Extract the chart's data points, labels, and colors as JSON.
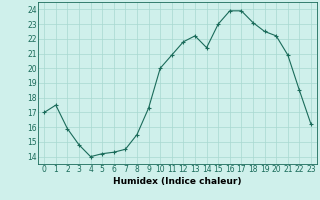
{
  "x": [
    0,
    1,
    2,
    3,
    4,
    5,
    6,
    7,
    8,
    9,
    10,
    11,
    12,
    13,
    14,
    15,
    16,
    17,
    18,
    19,
    20,
    21,
    22,
    23
  ],
  "y": [
    17.0,
    17.5,
    15.9,
    14.8,
    14.0,
    14.2,
    14.3,
    14.5,
    15.5,
    17.3,
    20.0,
    20.9,
    21.8,
    22.2,
    21.4,
    23.0,
    23.9,
    23.9,
    23.1,
    22.5,
    22.2,
    20.9,
    18.5,
    16.2
  ],
  "xlabel": "Humidex (Indice chaleur)",
  "ylabel": "",
  "ylim": [
    13.5,
    24.5
  ],
  "xlim": [
    -0.5,
    23.5
  ],
  "yticks": [
    14,
    15,
    16,
    17,
    18,
    19,
    20,
    21,
    22,
    23,
    24
  ],
  "xticks": [
    0,
    1,
    2,
    3,
    4,
    5,
    6,
    7,
    8,
    9,
    10,
    11,
    12,
    13,
    14,
    15,
    16,
    17,
    18,
    19,
    20,
    21,
    22,
    23
  ],
  "line_color": "#1a6b5a",
  "marker": "+",
  "bg_color": "#cff0eb",
  "grid_color": "#a8d8d0",
  "axis_label_fontsize": 6.5,
  "tick_fontsize": 5.5
}
